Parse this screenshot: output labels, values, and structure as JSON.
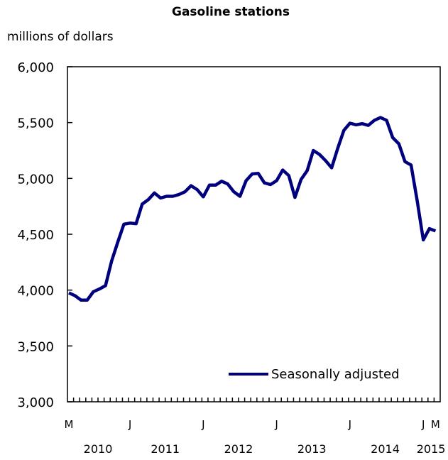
{
  "chart_data": {
    "type": "line",
    "title": "Gasoline stations",
    "ylabel": "millions of dollars",
    "xlabel": "",
    "ylim": [
      3000,
      6000
    ],
    "yticks": [
      3000,
      3500,
      4000,
      4500,
      5000,
      5500,
      6000
    ],
    "ytick_labels": [
      "3,000",
      "3,500",
      "4,000",
      "4,500",
      "5,000",
      "5,500",
      "6,000"
    ],
    "x_start": "2010-03",
    "x_month_labels": [
      {
        "index": 0,
        "label": "M"
      },
      {
        "index": 10,
        "label": "J"
      },
      {
        "index": 22,
        "label": "J"
      },
      {
        "index": 34,
        "label": "J"
      },
      {
        "index": 46,
        "label": "J"
      },
      {
        "index": 58,
        "label": "J"
      },
      {
        "index": 60,
        "label": "M"
      }
    ],
    "x_year_labels": [
      {
        "start": 0,
        "end": 10,
        "label": "2010"
      },
      {
        "start": 10,
        "end": 22,
        "label": "2011"
      },
      {
        "start": 22,
        "end": 34,
        "label": "2012"
      },
      {
        "start": 34,
        "end": 46,
        "label": "2013"
      },
      {
        "start": 46,
        "end": 58,
        "label": "2014"
      },
      {
        "start": 58,
        "end": 61,
        "label": "2015"
      }
    ],
    "legend": {
      "placement": "bottom-right"
    },
    "series": [
      {
        "name": "Seasonally adjusted",
        "color": "#00007f",
        "values": [
          3975,
          3950,
          3910,
          3910,
          3985,
          4010,
          4040,
          4260,
          4430,
          4590,
          4600,
          4595,
          4770,
          4810,
          4870,
          4825,
          4840,
          4840,
          4855,
          4880,
          4935,
          4900,
          4835,
          4940,
          4940,
          4975,
          4950,
          4880,
          4840,
          4980,
          5040,
          5045,
          4960,
          4945,
          4980,
          5075,
          5025,
          4830,
          4990,
          5070,
          5250,
          5215,
          5160,
          5095,
          5270,
          5430,
          5495,
          5480,
          5490,
          5475,
          5520,
          5545,
          5520,
          5365,
          5310,
          5150,
          5120,
          4800,
          4450,
          4550,
          4530
        ]
      }
    ]
  }
}
